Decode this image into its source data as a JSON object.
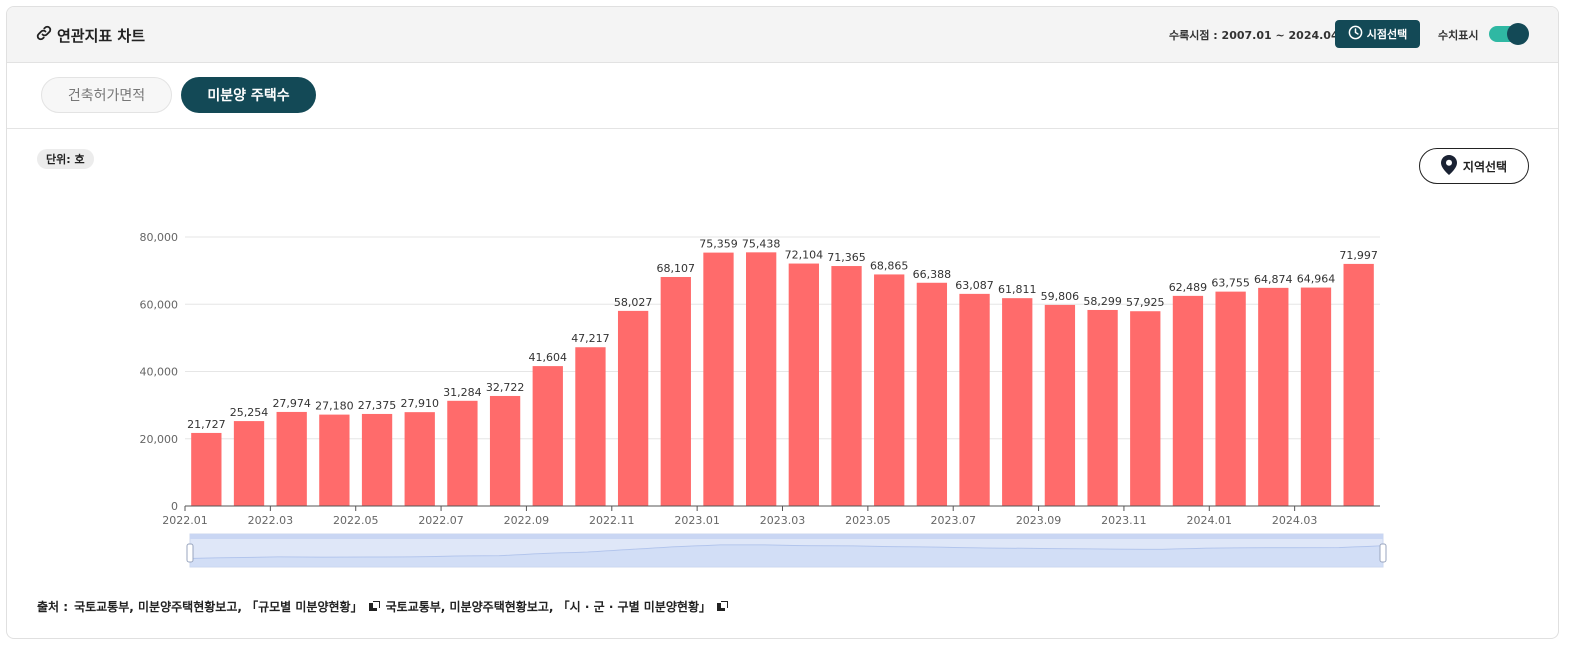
{
  "header": {
    "title": "연관지표 차트",
    "period_label": "수록시점 : 2007.01 ~ 2024.04",
    "time_button": "시점선택",
    "value_toggle_label": "수치표시",
    "value_toggle_on": true
  },
  "tabs": [
    {
      "label": "건축허가면적",
      "active": false
    },
    {
      "label": "미분양 주택수",
      "active": true
    }
  ],
  "unit_label": "단위: 호",
  "region_button": "지역선택",
  "source": {
    "prefix": "출처 :",
    "items": [
      "국토교통부, 미분양주택현황보고, 「규모별 미분양현황」",
      "국토교통부, 미분양주택현황보고, 「시 · 군 · 구별 미분양현황」"
    ]
  },
  "colors": {
    "bar": "#ff6b6b",
    "accent": "#134956",
    "toggle": "#2fb8a3"
  },
  "chart_data": {
    "type": "bar",
    "categories": [
      "2022.01",
      "2022.02",
      "2022.03",
      "2022.04",
      "2022.05",
      "2022.06",
      "2022.07",
      "2022.08",
      "2022.09",
      "2022.10",
      "2022.11",
      "2022.12",
      "2023.01",
      "2023.02",
      "2023.03",
      "2023.04",
      "2023.05",
      "2023.06",
      "2023.07",
      "2023.08",
      "2023.09",
      "2023.10",
      "2023.11",
      "2023.12",
      "2024.01",
      "2024.02",
      "2024.03",
      "2024.04"
    ],
    "tick_labels": [
      "2022.01",
      "2022.03",
      "2022.05",
      "2022.07",
      "2022.09",
      "2022.11",
      "2023.01",
      "2023.03",
      "2023.05",
      "2023.07",
      "2023.09",
      "2023.11",
      "2024.01",
      "2024.03"
    ],
    "values": [
      21727,
      25254,
      27974,
      27180,
      27375,
      27910,
      31284,
      32722,
      41604,
      47217,
      58027,
      68107,
      75359,
      75438,
      72104,
      71365,
      68865,
      66388,
      63087,
      61811,
      59806,
      58299,
      57925,
      62489,
      63755,
      64874,
      64964,
      71997
    ],
    "value_labels": [
      "21,727",
      "25,254",
      "27,974",
      "27,180",
      "27,375",
      "27,910",
      "31,284",
      "32,722",
      "41,604",
      "47,217",
      "58,027",
      "68,107",
      "75,359",
      "75,438",
      "72,104",
      "71,365",
      "68,865",
      "66,388",
      "63,087",
      "61,811",
      "59,806",
      "58,299",
      "57,925",
      "62,489",
      "63,755",
      "64,874",
      "64,964",
      "71,997"
    ],
    "y_ticks": [
      0,
      20000,
      40000,
      60000,
      80000
    ],
    "y_tick_labels": [
      "0",
      "20,000",
      "40,000",
      "60,000",
      "80,000"
    ],
    "ylim": [
      0,
      80000
    ],
    "grid": true,
    "data_zoom": true,
    "title": "",
    "xlabel": "",
    "ylabel": ""
  }
}
